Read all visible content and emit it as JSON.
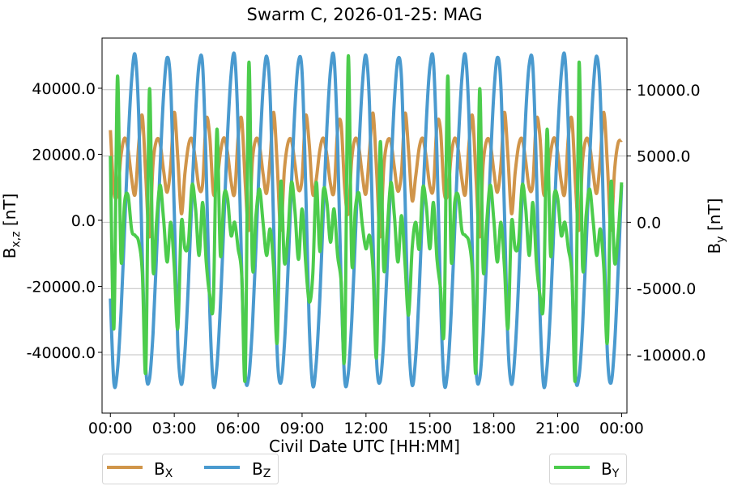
{
  "chart_data": {
    "type": "line",
    "title": "Swarm C, 2026-01-25: MAG",
    "xlabel": "Civil Date UTC [HH:MM]",
    "ylabel_left": {
      "base": "B",
      "sub": "x,z",
      "unit": " [nT]"
    },
    "ylabel_right": {
      "base": "B",
      "sub": "y",
      "unit": " [nT]"
    },
    "x_ticks": [
      "00:00",
      "03:00",
      "06:00",
      "09:00",
      "12:00",
      "15:00",
      "18:00",
      "21:00",
      "00:00"
    ],
    "y_left_ticks": [
      -40000,
      -20000,
      0,
      20000,
      40000
    ],
    "y_left_tick_labels": [
      "-40000.0",
      "-20000.0",
      "0.0",
      "20000.0",
      "40000.0"
    ],
    "y_right_ticks": [
      -10000,
      -5000,
      0,
      5000,
      10000
    ],
    "y_right_tick_labels": [
      "-10000.0",
      "-5000.0",
      "0.0",
      "5000.0",
      "10000.0"
    ],
    "xlim_hours": [
      -0.39,
      24.25
    ],
    "ylim_left": [
      -58400,
      55200
    ],
    "ylim_right": [
      -14400,
      13900
    ],
    "grid": "horizontal, right axis",
    "legend_placement": [
      "bottom-left outside",
      "bottom-right outside"
    ],
    "time": [
      "00:00",
      "00:10",
      "00:20",
      "00:30",
      "00:40",
      "00:50",
      "01:00",
      "01:10",
      "01:20",
      "01:30",
      "01:40",
      "01:50",
      "02:00",
      "02:10",
      "02:20",
      "02:30",
      "02:40",
      "02:50",
      "03:00",
      "03:10",
      "03:20",
      "03:30",
      "03:40",
      "03:50",
      "04:00",
      "04:10",
      "04:20",
      "04:30",
      "04:40",
      "04:50",
      "05:00",
      "05:10",
      "05:20",
      "05:30",
      "05:40",
      "05:50",
      "06:00",
      "06:10",
      "06:20",
      "06:30",
      "06:40",
      "06:50",
      "07:00",
      "07:10",
      "07:20",
      "07:30",
      "07:40",
      "07:50",
      "08:00",
      "08:10",
      "08:20",
      "08:30",
      "08:40",
      "08:50",
      "09:00",
      "09:10",
      "09:20",
      "09:30",
      "09:40",
      "09:50",
      "10:00",
      "10:10",
      "10:20",
      "10:30",
      "10:40",
      "10:50",
      "11:00",
      "11:10",
      "11:20",
      "11:30",
      "11:40",
      "11:50",
      "12:00",
      "12:10",
      "12:20",
      "12:30",
      "12:40",
      "12:50",
      "13:00",
      "13:10",
      "13:20",
      "13:30",
      "13:40",
      "13:50",
      "14:00",
      "14:10",
      "14:20",
      "14:30",
      "14:40",
      "14:50",
      "15:00",
      "15:10",
      "15:20",
      "15:30",
      "15:40",
      "15:50",
      "16:00",
      "16:10",
      "16:20",
      "16:30",
      "16:40",
      "16:50",
      "17:00",
      "17:10",
      "17:20",
      "17:30",
      "17:40",
      "17:50",
      "18:00",
      "18:10",
      "18:20",
      "18:30",
      "18:40",
      "18:50",
      "19:00",
      "19:10",
      "19:20",
      "19:30",
      "19:40",
      "19:50",
      "20:00",
      "20:10",
      "20:20",
      "20:30",
      "20:40",
      "20:50",
      "21:00",
      "21:10",
      "21:20",
      "21:30",
      "21:40",
      "21:50",
      "22:00",
      "22:10",
      "22:20",
      "22:30",
      "22:40",
      "22:50",
      "23:00",
      "23:10",
      "23:20",
      "23:30",
      "23:40",
      "23:50",
      "00:00"
    ],
    "series": [
      {
        "name": {
          "base": "B",
          "sub": "X"
        },
        "axis": "left",
        "color": "#d0954a",
        "values": [
          27300,
          8800,
          8000,
          19600,
          24900,
          21300,
          12500,
          8000,
          23200,
          31600,
          12700,
          -5000,
          16900,
          24200,
          23300,
          15000,
          8500,
          16700,
          32700,
          18800,
          2000,
          14200,
          22700,
          24600,
          17800,
          9700,
          11100,
          30500,
          25300,
          8200,
          11700,
          20500,
          25000,
          20500,
          11700,
          8200,
          25300,
          30500,
          11100,
          -3000,
          17800,
          24600,
          22700,
          14200,
          8200,
          18800,
          32700,
          16700,
          -3000,
          15000,
          23300,
          24200,
          16900,
          9200,
          12700,
          31600,
          23200,
          8000,
          12500,
          21300,
          24900,
          19600,
          11000,
          8800,
          27300,
          29000,
          9800,
          2000,
          18700,
          24800,
          22000,
          13300,
          8100,
          21000,
          32400,
          14600,
          -5000,
          16000,
          23800,
          23800,
          16000,
          8800,
          14600,
          32400,
          21000,
          6000,
          13300,
          22000,
          24800,
          18700,
          10300,
          9800,
          29000,
          27300,
          8800,
          8000,
          19600,
          24900,
          21300,
          12500,
          8000,
          23200,
          31600,
          12700,
          -5000,
          16900,
          24200,
          23300,
          15000,
          8500,
          16700,
          32700,
          18800,
          2000,
          14200,
          22700,
          24600,
          17800,
          9700,
          11100,
          30500,
          25300,
          8200,
          11700,
          20500,
          25000,
          20500,
          11700,
          8200,
          25300,
          30500,
          11100,
          -3000,
          17800,
          24600,
          22700,
          14200,
          8200,
          18800,
          32700,
          16700,
          -3000,
          15000,
          23300,
          24200
        ]
      },
      {
        "name": {
          "base": "B",
          "sub": "Z"
        },
        "axis": "left",
        "color": "#4a9acf",
        "values": [
          -23700,
          -49200,
          -45400,
          -28000,
          -2700,
          23400,
          42900,
          50000,
          31200,
          -11200,
          -45000,
          -48200,
          -34400,
          -10700,
          16000,
          38100,
          49300,
          40500,
          2200,
          -37700,
          -49700,
          -39800,
          -18500,
          8100,
          32300,
          47400,
          46800,
          15500,
          -27500,
          -49800,
          -44200,
          -25800,
          0,
          25800,
          44200,
          49800,
          27500,
          -15500,
          -46800,
          -47400,
          -32300,
          -8100,
          18500,
          39800,
          49700,
          37700,
          -2200,
          -40500,
          -49300,
          -38100,
          -16000,
          10700,
          34400,
          48200,
          45000,
          11200,
          -31200,
          -50000,
          -42900,
          -23400,
          2700,
          28000,
          45400,
          49200,
          23700,
          -19600,
          -48200,
          -46500,
          -30200,
          -5400,
          21000,
          41400,
          49900,
          34600,
          -6700,
          -42900,
          -48800,
          -36300,
          -13400,
          13400,
          36300,
          48800,
          42900,
          6700,
          -34600,
          -49900,
          -41400,
          -21000,
          5400,
          30200,
          46500,
          48200,
          19600,
          -23700,
          -49200,
          -45400,
          -28000,
          -2700,
          23400,
          42900,
          50000,
          31200,
          -11200,
          -45000,
          -48200,
          -34400,
          -10700,
          16000,
          38100,
          49300,
          40500,
          2200,
          -37700,
          -49700,
          -39800,
          -18500,
          8100,
          32300,
          47400,
          46800,
          15500,
          -27500,
          -49800,
          -44200,
          -25800,
          0,
          25800,
          44200,
          49800,
          27500,
          -15500,
          -46800,
          -47400,
          -32300,
          -8100,
          18500,
          39800,
          49700,
          37700,
          -2200,
          -40500,
          -49300,
          -38100,
          -16000,
          10700
        ]
      },
      {
        "name": {
          "base": "B",
          "sub": "Y"
        },
        "axis": "right",
        "color": "#4ccc4c",
        "values": [
          5000,
          -8000,
          11000,
          -2800,
          1500,
          2000,
          -600,
          -1000,
          -1500,
          -3800,
          -11000,
          10000,
          -3500,
          0,
          2800,
          200,
          -3000,
          0,
          -3400,
          -8000,
          0,
          -2000,
          -1500,
          2800,
          1000,
          -2500,
          1500,
          -3000,
          -5500,
          -6000,
          7000,
          -2500,
          2000,
          1800,
          -1000,
          0,
          -2000,
          -4000,
          -11500,
          12000,
          -3300,
          500,
          2500,
          0,
          -2500,
          -500,
          -3500,
          -9000,
          3000,
          -3000,
          -1000,
          3000,
          800,
          -2800,
          1000,
          -3000,
          -6000,
          -4000,
          3000,
          -2200,
          2400,
          1500,
          -1500,
          1000,
          -2500,
          -4500,
          -10000,
          12500,
          -3000,
          1000,
          2200,
          -300,
          -2000,
          -1000,
          -3600,
          -10000,
          6000,
          -3500,
          -500,
          3000,
          500,
          -3000,
          500,
          -3200,
          -7000,
          -2000,
          0,
          -2000,
          2600,
          1200,
          -2000,
          1500,
          -2800,
          -5000,
          -8000,
          11000,
          -2800,
          1500,
          2000,
          -600,
          -1000,
          -1500,
          -3800,
          -11000,
          10000,
          -3500,
          0,
          2800,
          200,
          -3000,
          0,
          -3400,
          -8000,
          0,
          -2000,
          -1500,
          2800,
          1000,
          -2500,
          1500,
          -3000,
          -5500,
          -6000,
          7000,
          -2500,
          2000,
          1800,
          -1000,
          0,
          -2000,
          -4000,
          -11500,
          12000,
          -3300,
          500,
          2500,
          0,
          -2500,
          -500,
          -3500,
          -9000,
          3000,
          -3000,
          -1000,
          3000
        ]
      }
    ]
  }
}
